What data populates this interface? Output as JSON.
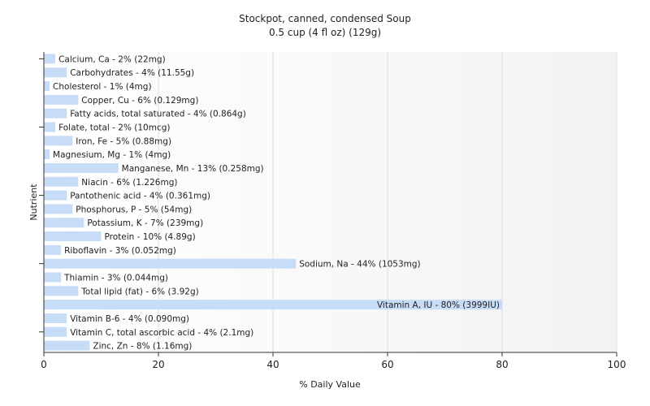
{
  "chart_data": {
    "type": "bar",
    "orientation": "horizontal",
    "title": "Stockpot, canned, condensed Soup",
    "subtitle": "0.5 cup (4 fl oz) (129g)",
    "xlabel": "% Daily Value",
    "ylabel": "Nutrient",
    "xlim": [
      0,
      100
    ],
    "xticks": [
      "0",
      "20",
      "40",
      "60",
      "80",
      "100"
    ],
    "grid": true,
    "bar_color": "#c6dcf7",
    "categories": [
      "Calcium, Ca",
      "Carbohydrates",
      "Cholesterol",
      "Copper, Cu",
      "Fatty acids, total saturated",
      "Folate, total",
      "Iron, Fe",
      "Magnesium, Mg",
      "Manganese, Mn",
      "Niacin",
      "Pantothenic acid",
      "Phosphorus, P",
      "Potassium, K",
      "Protein",
      "Riboflavin",
      "Sodium, Na",
      "Thiamin",
      "Total lipid (fat)",
      "Vitamin A, IU",
      "Vitamin B-6",
      "Vitamin C, total ascorbic acid",
      "Zinc, Zn"
    ],
    "values": [
      2,
      4,
      1,
      6,
      4,
      2,
      5,
      1,
      13,
      6,
      4,
      5,
      7,
      10,
      3,
      44,
      3,
      6,
      80,
      4,
      4,
      8
    ],
    "labels": [
      "Calcium, Ca - 2% (22mg)",
      "Carbohydrates - 4% (11.55g)",
      "Cholesterol - 1% (4mg)",
      "Copper, Cu - 6% (0.129mg)",
      "Fatty acids, total saturated - 4% (0.864g)",
      "Folate, total - 2% (10mcg)",
      "Iron, Fe - 5% (0.88mg)",
      "Magnesium, Mg - 1% (4mg)",
      "Manganese, Mn - 13% (0.258mg)",
      "Niacin - 6% (1.226mg)",
      "Pantothenic acid - 4% (0.361mg)",
      "Phosphorus, P - 5% (54mg)",
      "Potassium, K - 7% (239mg)",
      "Protein - 10% (4.89g)",
      "Riboflavin - 3% (0.052mg)",
      "Sodium, Na - 44% (1053mg)",
      "Thiamin - 3% (0.044mg)",
      "Total lipid (fat) - 6% (3.92g)",
      "Vitamin A, IU - 80% (3999IU)",
      "Vitamin B-6 - 4% (0.090mg)",
      "Vitamin C, total ascorbic acid - 4% (2.1mg)",
      "Zinc, Zn - 8% (1.16mg)"
    ]
  }
}
